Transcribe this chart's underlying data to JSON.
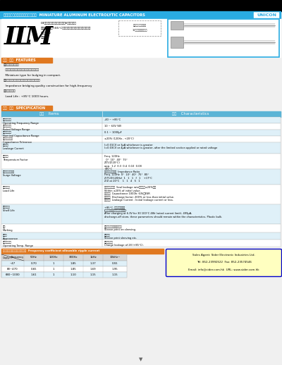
{
  "bg_color": "#f0f0f0",
  "white": "#ffffff",
  "black": "#000000",
  "cyan_header_bg": "#29abe2",
  "cyan_header_text": "#ffffff",
  "unicon_box_bg": "#ffffff",
  "unicon_box_border": "#29abe2",
  "unicon_text": "#29abe2",
  "section_orange_bg": "#e07820",
  "section_orange_text": "#ffffff",
  "table_header_bg": "#5ab4d6",
  "table_header_text": "#ffffff",
  "table_row_even": "#dff0f8",
  "table_row_odd": "#ffffff",
  "table_border": "#aaaaaa",
  "freq_header_bg": "#e07820",
  "freq_header_text": "#ffffff",
  "contact_bg": "#ffffc0",
  "contact_border": "#0000cc",
  "contact_text": "#000000",
  "photo_box_border": "#29abe2",
  "desc_box_border": "#888888",
  "page_num_color": "#666666",
  "header_title_jp": "小形アルミニウム電解コンデンサ",
  "header_title_en": "MINIATURE ALUMINUM ELECTROLYTIC CAPACITORS",
  "brand": "UNICON",
  "series_letters": [
    "L",
    "L",
    "M"
  ],
  "desc_lines": [
    "D4内設温度：高熱低谏雖音（Eシリーズ）",
    "最高使用温度：+85°Cのアルミ電解コンデンサ（标準品）",
    "シリーズ：2",
    "対応規格"
  ],
  "small_box_line1": "周波数特性図表示例",
  "small_box_line2": "1Eシリーズ付加価値",
  "features_header": "特長  特徴  FEATURES",
  "feature_lines": [
    "・小形化、軽量化。",
    "  小型化のために基板実装に適しています。",
    "  Miniature type for bulging in compact.",
    "・高頻香度、インピーダンス小の低雑音対応。",
    "  Impedance bridging quality construction for high-frequency",
    "・長寿命設計。",
    "  Load Life : +85°C 1000 hours."
  ],
  "spec_header": "規格  仕様  SPECIFICATION",
  "items_label": "項目    Items",
  "char_label": "特性    Characteristics",
  "spec_rows": [
    [
      "定格電圧範囲\nOperating Frequency Range",
      "-40 ~ +85°C"
    ],
    [
      "額定電圧範囲\nRated Voltage Range",
      "10 ~ 63V (W)"
    ],
    [
      "電容容量範囲\nNominal Capacitance Range",
      "0.1 ~ 1000μF"
    ],
    [
      "電容容量許容差\nCapacitance Tolerance",
      "±20% (120Hz , +20°C)"
    ],
    [
      "漏れ電流\nLeakage Current",
      "I=0.01CV or 3μA whichever is greater\nI=0.03CV or 4μA whichever is greater, after the limited section applied or rated voltage"
    ],
    [
      "温度特性\nTemperature Factor",
      "Freq. 120Hz\n  0°  10°  40°  75°\nZ(T)/Z(20°C)\napp.  1.2  0.3  0.4  0.10  0.08\n+85°C"
    ],
    [
      "インピーダンス比\nSurge Voltage",
      "インピーダンス比  Impedance Ratio\nFreq. 120Hz  0°  10°  40°  75°  85°\nZ(T)/Z(120Hz)  1   1   1   f   1    +17°C\nZ/Z at 20°C    1   1   4   5   1"
    ],
    [
      "耐久性試験\nLoad Life",
      "電容容量変化率  Seal leakage rate初期値の±20%以内\nWithin ±20% of initial value.\n電容容量  Capacitance 1000h: 63VのESR\n漏れ電流  Discharge factor: 200% or less than initial value.\n漏れ電流  Leakage Current : Initial leakage current or less."
    ],
    [
      "耐傘境試験\nShelf Life",
      "+85°C, 電容容量変化率\n(定格電圧、等価直列抗抗値以下)\nAfter charging at 6.3V for 30 100°C 48h (rated current limit), 499μA,\ndischarge-off store, these parameters should remain within the characteristics. Plastic bulk."
    ],
    [
      "標記\nMarking",
      "スリーブ・テープ印刷処理\nSleeve print on sleeving."
    ],
    [
      "外観寻\nAppearance",
      "外観寻記\nSleeve print sleeving etc."
    ],
    [
      "使用温度範囲\nOperating Temp. Range",
      "内部使用温度\nCharge leakage of 28 (+85°C)."
    ]
  ],
  "freq_section_label": "周波数特性による電容容量比繫  Frequency coefficient allowable ripple current",
  "freq_col_headers": [
    "Cap(μF)",
    "50Hz",
    "120Hz",
    "300Hz",
    "1kHz",
    "10kHz~"
  ],
  "freq_col_label_top": "Frequency",
  "freq_data": [
    [
      "~47",
      "0.70",
      "1",
      "1.85",
      "1.37",
      "0.55"
    ],
    [
      "68~470",
      "0.65",
      "1",
      "1.85",
      "1.69",
      "1.95"
    ],
    [
      "680~1000",
      "1.61",
      "1",
      "1.10",
      "1.15",
      "1.15"
    ]
  ],
  "contact_lines": [
    "Sales Agent: Sider Electronic Industries Ltd.",
    "Tel: 852-23992522  Fax: 852-23574546",
    "Email: info@sider.com.hk  URL: www.sider.com.hk"
  ]
}
